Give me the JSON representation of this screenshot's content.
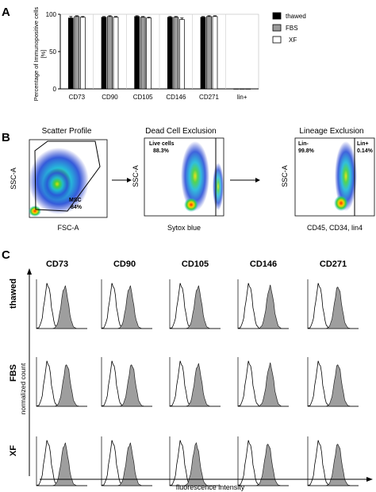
{
  "panel_labels": {
    "a": "A",
    "b": "B",
    "c": "C"
  },
  "panel_a": {
    "ylabel_line1": "Percentage of Immunopositive cells",
    "ylabel_line2": "[%]",
    "legend": {
      "thawed": "thawed",
      "fbs": "FBS",
      "xf": "XF"
    }
  },
  "panel_b": {
    "scatter": {
      "title": "Scatter Profile",
      "ylabel": "SSC-A",
      "xlabel": "FSC-A",
      "gate_name": "MSC",
      "gate_value": "84%"
    },
    "dead": {
      "title": "Dead Cell Exclusion",
      "ylabel": "SSC-A",
      "xlabel": "Sytox blue",
      "gate_name": "Live cells",
      "gate_value": "88.3%"
    },
    "lineage": {
      "title": "Lineage Exclusion",
      "ylabel": "SSC-A",
      "xlabel": "CD45, CD34, lin4",
      "gate_neg_name": "Lin-",
      "gate_neg_value": "99.8%",
      "gate_pos_name": "Lin+",
      "gate_pos_value": "0.14%"
    }
  },
  "panel_c": {
    "columns": [
      "CD73",
      "CD90",
      "CD105",
      "CD146",
      "CD271"
    ],
    "rows": [
      "thawed",
      "FBS",
      "XF"
    ],
    "ylabel": "normalized count",
    "xlabel": "fluorescence intensity",
    "peak_positions": [
      [
        0.45,
        0.45,
        0.45,
        0.55,
        0.5
      ],
      [
        0.5,
        0.5,
        0.45,
        0.55,
        0.5
      ],
      [
        0.45,
        0.45,
        0.4,
        0.5,
        0.5
      ]
    ]
  },
  "chart_data": {
    "type": "bar",
    "title": "",
    "xlabel": "",
    "ylabel": "Percentage of Immunopositive cells [%]",
    "categories": [
      "CD73",
      "CD90",
      "CD105",
      "CD146",
      "CD271",
      "lin+"
    ],
    "ylim": [
      0,
      100
    ],
    "yticks": [
      0,
      50,
      100
    ],
    "legend_position": "top-right",
    "series": [
      {
        "name": "thawed",
        "color": "#000000",
        "values": [
          95,
          96,
          97,
          96,
          96,
          0.2
        ],
        "errors": [
          2,
          1,
          1,
          1,
          1,
          0.1
        ]
      },
      {
        "name": "FBS",
        "color": "#9a9a9a",
        "values": [
          97,
          97,
          96,
          96,
          97,
          0.2
        ],
        "errors": [
          1,
          1,
          1,
          1,
          1,
          0.1
        ]
      },
      {
        "name": "XF",
        "color": "#ffffff",
        "values": [
          96,
          96,
          95,
          93,
          97,
          0.2
        ],
        "errors": [
          1,
          1,
          1,
          2,
          1,
          0.1
        ]
      }
    ]
  }
}
